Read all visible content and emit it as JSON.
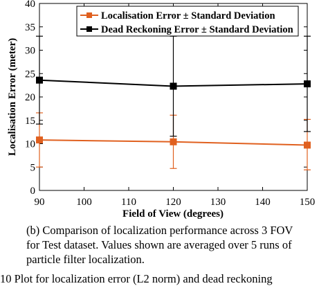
{
  "chart_data": {
    "type": "line",
    "xlabel": "Field of View (degrees)",
    "ylabel": "Localisation Error (meter)",
    "xlim": [
      90,
      150
    ],
    "ylim": [
      0,
      40
    ],
    "xticks": [
      90,
      100,
      110,
      120,
      130,
      140,
      150
    ],
    "yticks": [
      0,
      5,
      10,
      15,
      20,
      25,
      30,
      35,
      40
    ],
    "grid": false,
    "legend_position": "top-right",
    "x": [
      90,
      120,
      150
    ],
    "series": [
      {
        "name": "Localisation Error ± Standard Deviation",
        "color": "#e0601f",
        "marker": "square",
        "values": [
          10.8,
          10.4,
          9.7
        ],
        "error_low": [
          5.0,
          4.7,
          4.4
        ],
        "error_high": [
          16.6,
          16.1,
          15.2
        ]
      },
      {
        "name": "Dead Reckoning Error ± Standard Deviation",
        "color": "#000000",
        "marker": "square",
        "values": [
          23.6,
          22.3,
          22.8
        ],
        "error_low": [
          14.2,
          11.6,
          12.6
        ],
        "error_high": [
          33.0,
          33.0,
          33.0
        ]
      }
    ]
  },
  "caption": {
    "lines": [
      "(b) Comparison of localization performance across 3 FOV",
      "for Test dataset. Values shown are averaged over 5 runs of",
      "particle filter localization."
    ]
  },
  "footer": {
    "text": "10     Plot for localization error (L2 norm) and dead reckoning"
  }
}
